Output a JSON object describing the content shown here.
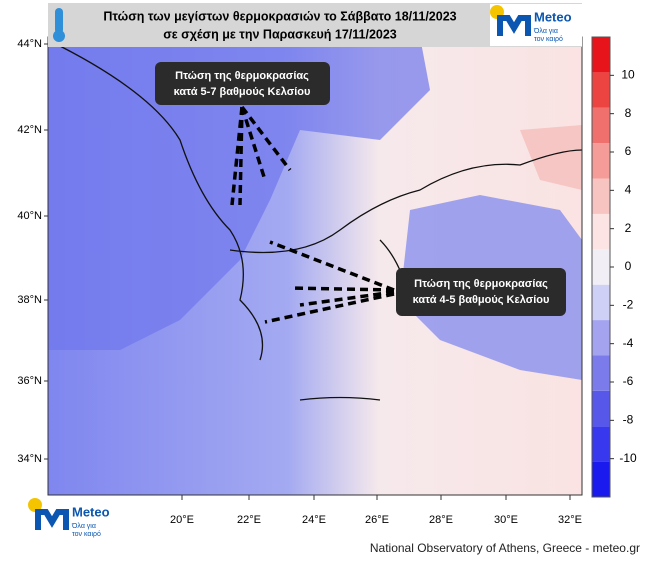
{
  "header": {
    "title_lines": [
      "Πτώση των μεγίστων θερμοκρασιών το Σάββατο 18/11/2023",
      "σε σχέση με την Παρασκευή 17/11/2023"
    ]
  },
  "logo_top": {
    "name": "Meteo",
    "tagline": [
      "Όλα για",
      "τον καιρό"
    ]
  },
  "logo_bottom": {
    "name": "Meteo",
    "tagline": [
      "Όλα για",
      "τον καιρό"
    ]
  },
  "map": {
    "lat_labels": [
      "44°N",
      "42°N",
      "40°N",
      "38°N",
      "36°N",
      "34°N"
    ],
    "lon_labels": [
      "20°E",
      "22°E",
      "24°E",
      "26°E",
      "28°E",
      "30°E",
      "32°E"
    ]
  },
  "annotations": [
    {
      "lines": [
        "Πτώση της θερμοκρασίας",
        "κατά 5-7 βαθμούς Κελσίου"
      ]
    },
    {
      "lines": [
        "Πτώση της θερμοκρασίας",
        "κατά 4-5 βαθμούς Κελσίου"
      ]
    }
  ],
  "colorbar": {
    "lim": [
      -12,
      12
    ],
    "ticks": [
      10,
      8,
      6,
      4,
      2,
      0,
      -2,
      -4,
      -6,
      -8,
      -10
    ],
    "colors": [
      "#1a1aef",
      "#3838ee",
      "#5757ea",
      "#7b7bec",
      "#a3a3f0",
      "#cfd0f6",
      "#f2eef6",
      "#fbe4e3",
      "#f8c4c2",
      "#f59c99",
      "#f0706d",
      "#eb4441",
      "#e8141c"
    ]
  },
  "footer": {
    "credit": "National Observatory of Athens, Greece - meteo.gr"
  }
}
